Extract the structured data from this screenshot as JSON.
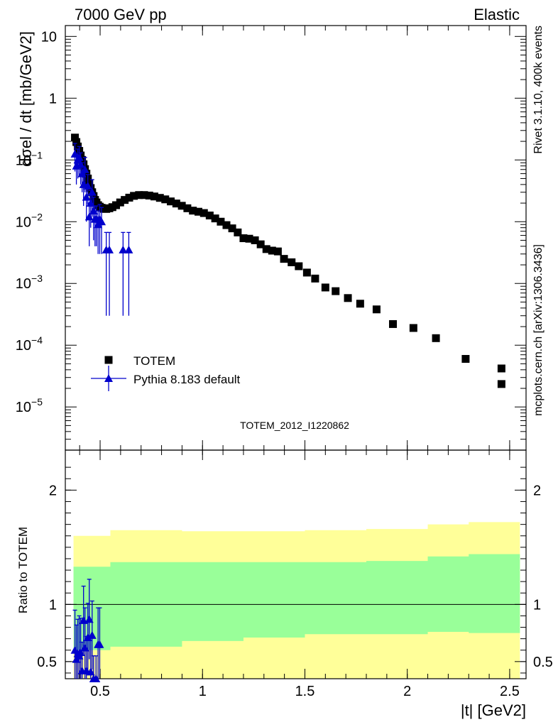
{
  "header": {
    "left": "7000 GeV pp",
    "right": "Elastic"
  },
  "side": {
    "top": "Rivet 3.1.10,  400k events",
    "bottom": "mcplots.cern.ch [arXiv:1306.3436]"
  },
  "colors": {
    "data": "#000000",
    "mc": "#0000cc",
    "band_inner": "#99ff99",
    "band_outer": "#ffff99"
  },
  "chart_data": [
    {
      "type": "scatter",
      "yscale": "log",
      "ylabel": "dσel / dt [mb/GeV2]",
      "ylim": [
        2e-06,
        15
      ],
      "xlim": [
        0.33,
        2.58
      ],
      "yticks": [
        {
          "value": 10,
          "label": "10"
        },
        {
          "value": 1,
          "label": "1"
        },
        {
          "value": 0.1,
          "label": "10",
          "sup": "−1"
        },
        {
          "value": 0.01,
          "label": "10",
          "sup": "−2"
        },
        {
          "value": 0.001,
          "label": "10",
          "sup": "−3"
        },
        {
          "value": 0.0001,
          "label": "10",
          "sup": "−4"
        },
        {
          "value": 1e-05,
          "label": "10",
          "sup": "−5"
        }
      ],
      "annotation": "TOTEM_2012_I1220862",
      "legend": {
        "placement": "center-left",
        "entries": [
          "TOTEM",
          "Pythia 8.183 default"
        ]
      },
      "series": [
        {
          "name": "TOTEM",
          "marker": "square",
          "points": [
            [
              0.377,
              0.23
            ],
            [
              0.384,
              0.195
            ],
            [
              0.391,
              0.165
            ],
            [
              0.398,
              0.14
            ],
            [
              0.405,
              0.118
            ],
            [
              0.412,
              0.1
            ],
            [
              0.419,
              0.085
            ],
            [
              0.426,
              0.071
            ],
            [
              0.433,
              0.06
            ],
            [
              0.44,
              0.05
            ],
            [
              0.447,
              0.042
            ],
            [
              0.454,
              0.035
            ],
            [
              0.461,
              0.03
            ],
            [
              0.468,
              0.026
            ],
            [
              0.475,
              0.0225
            ],
            [
              0.482,
              0.0205
            ],
            [
              0.49,
              0.0185
            ],
            [
              0.498,
              0.0175
            ],
            [
              0.507,
              0.0168
            ],
            [
              0.518,
              0.0162
            ],
            [
              0.53,
              0.0161
            ],
            [
              0.545,
              0.0165
            ],
            [
              0.56,
              0.0172
            ],
            [
              0.578,
              0.0185
            ],
            [
              0.598,
              0.0205
            ],
            [
              0.62,
              0.0225
            ],
            [
              0.642,
              0.0245
            ],
            [
              0.665,
              0.0262
            ],
            [
              0.69,
              0.027
            ],
            [
              0.715,
              0.027
            ],
            [
              0.74,
              0.0265
            ],
            [
              0.765,
              0.0256
            ],
            [
              0.792,
              0.0243
            ],
            [
              0.818,
              0.023
            ],
            [
              0.845,
              0.0213
            ],
            [
              0.872,
              0.0197
            ],
            [
              0.899,
              0.0181
            ],
            [
              0.926,
              0.0165
            ],
            [
              0.953,
              0.0151
            ],
            [
              0.98,
              0.0145
            ],
            [
              1.007,
              0.0138
            ],
            [
              1.035,
              0.0126
            ],
            [
              1.062,
              0.0113
            ],
            [
              1.089,
              0.01
            ],
            [
              1.117,
              0.0088
            ],
            [
              1.145,
              0.0078
            ],
            [
              1.172,
              0.0067
            ],
            [
              1.2,
              0.0054
            ],
            [
              1.228,
              0.0053
            ],
            [
              1.256,
              0.005
            ],
            [
              1.284,
              0.0043
            ],
            [
              1.312,
              0.0036
            ],
            [
              1.34,
              0.0034
            ],
            [
              1.368,
              0.0033
            ],
            [
              1.398,
              0.0025
            ],
            [
              1.435,
              0.0022
            ],
            [
              1.47,
              0.0019
            ],
            [
              1.51,
              0.0015
            ],
            [
              1.55,
              0.0012
            ],
            [
              1.6,
              0.00086
            ],
            [
              1.65,
              0.00075
            ],
            [
              1.71,
              0.00058
            ],
            [
              1.77,
              0.00047
            ],
            [
              1.85,
              0.00038
            ],
            [
              1.93,
              0.00022
            ],
            [
              2.03,
              0.00019
            ],
            [
              2.14,
              0.00013
            ],
            [
              2.285,
              6e-05
            ],
            [
              2.46,
              4.2e-05
            ],
            [
              2.46,
              2.35e-05
            ]
          ]
        },
        {
          "name": "Pythia 8.183 default",
          "marker": "triangle",
          "points": [
            [
              0.377,
              0.125,
              0.06
            ],
            [
              0.384,
              0.08,
              0.04
            ],
            [
              0.391,
              0.1,
              0.05
            ],
            [
              0.398,
              0.11,
              0.055
            ],
            [
              0.405,
              0.085,
              0.045
            ],
            [
              0.412,
              0.06,
              0.03
            ],
            [
              0.419,
              0.04,
              0.022
            ],
            [
              0.426,
              0.07,
              0.04
            ],
            [
              0.433,
              0.025,
              0.015
            ],
            [
              0.44,
              0.038,
              0.02
            ],
            [
              0.447,
              0.012,
              0.008
            ],
            [
              0.454,
              0.02,
              0.012
            ],
            [
              0.461,
              0.03,
              0.018
            ],
            [
              0.468,
              0.015,
              0.01
            ],
            [
              0.475,
              0.011,
              0.007
            ],
            [
              0.482,
              0.011,
              0.007
            ],
            [
              0.49,
              0.009,
              0.006
            ],
            [
              0.498,
              0.011,
              0.008
            ],
            [
              0.507,
              0.01,
              0.007
            ],
            [
              0.53,
              0.0035,
              0.0032
            ],
            [
              0.545,
              0.0035,
              0.0032
            ],
            [
              0.612,
              0.0035,
              0.0032
            ],
            [
              0.64,
              0.0035,
              0.0032
            ]
          ]
        }
      ]
    },
    {
      "type": "ratio",
      "ylabel": "Ratio to TOTEM",
      "xlabel": "|t| [GeV2]",
      "xlim": [
        0.33,
        2.58
      ],
      "ylim": [
        0.35,
        2.35
      ],
      "xticks": [
        {
          "value": 0.5,
          "label": "0.5"
        },
        {
          "value": 1,
          "label": "1"
        },
        {
          "value": 1.5,
          "label": "1.5"
        },
        {
          "value": 2,
          "label": "2"
        },
        {
          "value": 2.5,
          "label": "2.5"
        }
      ],
      "yticks": [
        {
          "value": 0.5,
          "label": "0.5"
        },
        {
          "value": 1,
          "label": "1"
        },
        {
          "value": 2,
          "label": "2"
        }
      ],
      "band_outer": [
        [
          0.37,
          1.6,
          0.35
        ],
        [
          0.55,
          1.65,
          0.35
        ],
        [
          0.9,
          1.64,
          0.35
        ],
        [
          1.2,
          1.64,
          0.35
        ],
        [
          1.5,
          1.65,
          0.35
        ],
        [
          1.8,
          1.66,
          0.35
        ],
        [
          2.1,
          1.7,
          0.35
        ],
        [
          2.3,
          1.72,
          0.35
        ],
        [
          2.55,
          1.74,
          0.35
        ]
      ],
      "band_inner": [
        [
          0.37,
          1.33,
          0.6
        ],
        [
          0.55,
          1.37,
          0.63
        ],
        [
          0.9,
          1.37,
          0.68
        ],
        [
          1.2,
          1.37,
          0.71
        ],
        [
          1.5,
          1.37,
          0.74
        ],
        [
          1.8,
          1.38,
          0.74
        ],
        [
          2.1,
          1.42,
          0.76
        ],
        [
          2.3,
          1.44,
          0.75
        ],
        [
          2.55,
          1.44,
          0.72
        ]
      ],
      "series": [
        {
          "name": "Pythia 8.183 default",
          "points": [
            [
              0.377,
              0.6,
              0.35
            ],
            [
              0.384,
              0.52,
              0.3
            ],
            [
              0.391,
              0.57,
              0.3
            ],
            [
              0.398,
              0.55,
              0.35
            ],
            [
              0.405,
              0.58,
              0.3
            ],
            [
              0.412,
              0.42,
              0.25
            ],
            [
              0.419,
              0.86,
              0.3
            ],
            [
              0.426,
              0.62,
              0.35
            ],
            [
              0.433,
              0.42,
              0.3
            ],
            [
              0.44,
              0.71,
              0.3
            ],
            [
              0.447,
              0.87,
              0.35
            ],
            [
              0.454,
              0.41,
              0.3
            ],
            [
              0.461,
              0.73,
              0.3
            ],
            [
              0.468,
              0.35,
              0.2
            ],
            [
              0.48,
              0.35,
              0.2
            ],
            [
              0.49,
              0.65,
              0.32
            ],
            [
              0.498,
              0.65,
              0.32
            ]
          ]
        }
      ]
    }
  ]
}
